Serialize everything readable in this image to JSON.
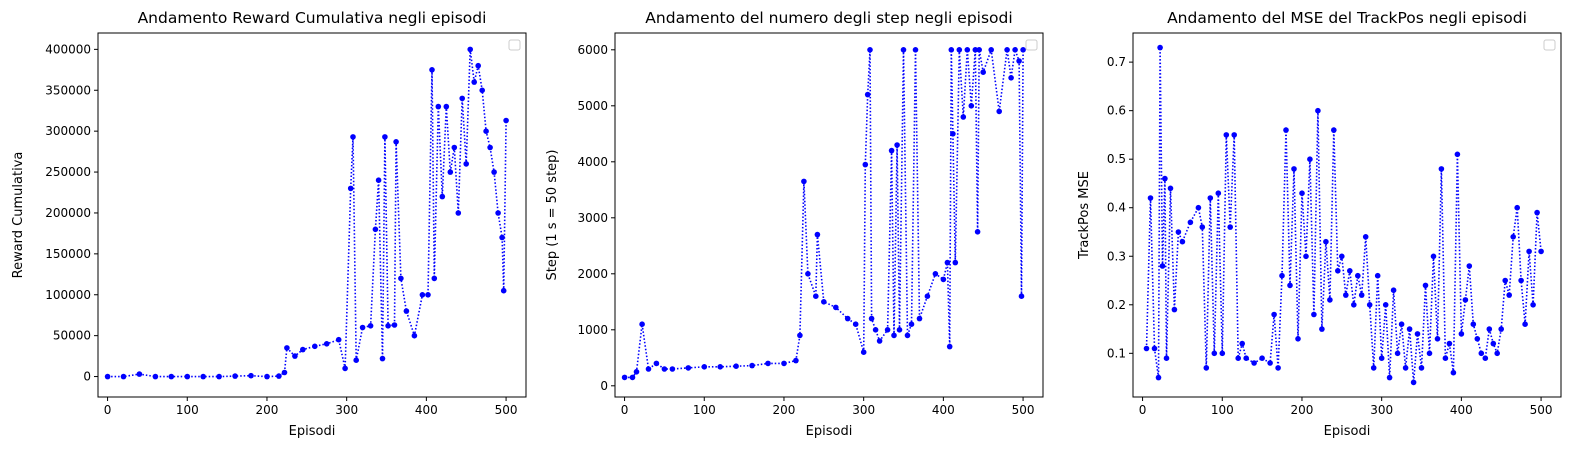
{
  "colors": {
    "series": "#0000ff",
    "axis": "#000000",
    "background": "#ffffff"
  },
  "chart_data": [
    {
      "type": "line",
      "title": "Andamento Reward Cumulativa negli episodi",
      "xlabel": "Episodi",
      "ylabel": "Reward Cumulativa",
      "xlim": [
        -12,
        525
      ],
      "ylim": [
        -25000,
        420000
      ],
      "xticks": [
        0,
        100,
        200,
        300,
        400,
        500
      ],
      "yticks": [
        0,
        50000,
        100000,
        150000,
        200000,
        250000,
        300000,
        350000,
        400000
      ],
      "legend": "top-right (empty)",
      "line_style": "dotted",
      "marker": "circle",
      "x": [
        0,
        20,
        40,
        60,
        80,
        100,
        120,
        140,
        160,
        180,
        200,
        215,
        222,
        225,
        235,
        245,
        260,
        275,
        290,
        298,
        305,
        308,
        312,
        320,
        330,
        336,
        340,
        345,
        348,
        352,
        360,
        362,
        368,
        375,
        385,
        395,
        402,
        407,
        410,
        415,
        420,
        425,
        430,
        435,
        440,
        445,
        450,
        455,
        460,
        465,
        470,
        475,
        480,
        485,
        490,
        495,
        497,
        500
      ],
      "y": [
        0,
        0,
        3000,
        0,
        0,
        0,
        0,
        0,
        500,
        1000,
        0,
        500,
        5000,
        35000,
        25000,
        33000,
        37000,
        40000,
        45000,
        10000,
        230000,
        293000,
        20000,
        60000,
        62000,
        180000,
        240000,
        22000,
        293000,
        62000,
        63000,
        287000,
        120000,
        80000,
        50000,
        100000,
        100000,
        375000,
        120000,
        330000,
        220000,
        330000,
        250000,
        280000,
        200000,
        340000,
        260000,
        400000,
        360000,
        380000,
        350000,
        300000,
        280000,
        250000,
        200000,
        170000,
        105000,
        313000
      ]
    },
    {
      "type": "line",
      "title": "Andamento del numero degli step negli episodi",
      "xlabel": "Episodi",
      "ylabel": "Step (1 s = 50 step)",
      "xlim": [
        -12,
        525
      ],
      "ylim": [
        -200,
        6300
      ],
      "xticks": [
        0,
        100,
        200,
        300,
        400,
        500
      ],
      "yticks": [
        0,
        1000,
        2000,
        3000,
        4000,
        5000,
        6000
      ],
      "legend": "top-right (empty)",
      "line_style": "dotted",
      "marker": "circle",
      "x": [
        0,
        10,
        15,
        22,
        30,
        40,
        50,
        60,
        80,
        100,
        120,
        140,
        160,
        180,
        200,
        215,
        220,
        225,
        230,
        240,
        242,
        250,
        265,
        280,
        290,
        300,
        302,
        305,
        308,
        310,
        315,
        320,
        330,
        335,
        338,
        342,
        345,
        350,
        355,
        360,
        365,
        370,
        380,
        390,
        400,
        405,
        408,
        410,
        412,
        415,
        420,
        425,
        430,
        435,
        440,
        443,
        445,
        450,
        460,
        470,
        480,
        485,
        490,
        495,
        498,
        500
      ],
      "y": [
        150,
        150,
        250,
        1100,
        300,
        400,
        300,
        300,
        320,
        340,
        340,
        350,
        360,
        400,
        400,
        450,
        900,
        3650,
        2000,
        1600,
        2700,
        1500,
        1400,
        1200,
        1100,
        600,
        3950,
        5200,
        6000,
        1200,
        1000,
        800,
        1000,
        4200,
        900,
        4300,
        1000,
        6000,
        900,
        1100,
        6000,
        1200,
        1600,
        2000,
        1900,
        2200,
        700,
        6000,
        4500,
        2200,
        6000,
        4800,
        6000,
        5000,
        6000,
        2750,
        6000,
        5600,
        6000,
        4900,
        6000,
        5500,
        6000,
        5800,
        1600,
        6000
      ]
    },
    {
      "type": "line",
      "title": "Andamento del MSE del TrackPos negli episodi",
      "xlabel": "Episodi",
      "ylabel": "TrackPos MSE",
      "xlim": [
        -12,
        525
      ],
      "ylim": [
        0.01,
        0.76
      ],
      "xticks": [
        0,
        100,
        200,
        300,
        400,
        500
      ],
      "yticks": [
        0.1,
        0.2,
        0.3,
        0.4,
        0.5,
        0.6,
        0.7
      ],
      "legend": "top-right (empty)",
      "line_style": "dotted",
      "marker": "circle",
      "x": [
        5,
        10,
        15,
        20,
        22,
        25,
        28,
        30,
        35,
        40,
        45,
        50,
        60,
        70,
        75,
        80,
        85,
        90,
        95,
        100,
        105,
        110,
        115,
        120,
        125,
        130,
        140,
        150,
        160,
        165,
        170,
        175,
        180,
        185,
        190,
        195,
        200,
        205,
        210,
        215,
        220,
        225,
        230,
        235,
        240,
        245,
        250,
        255,
        260,
        265,
        270,
        275,
        280,
        285,
        290,
        295,
        300,
        305,
        310,
        315,
        320,
        325,
        330,
        335,
        340,
        345,
        350,
        355,
        360,
        365,
        370,
        375,
        380,
        385,
        390,
        395,
        400,
        405,
        410,
        415,
        420,
        425,
        430,
        435,
        440,
        445,
        450,
        455,
        460,
        465,
        470,
        475,
        480,
        485,
        490,
        495,
        500
      ],
      "y": [
        0.11,
        0.42,
        0.11,
        0.05,
        0.73,
        0.28,
        0.46,
        0.09,
        0.44,
        0.19,
        0.35,
        0.33,
        0.37,
        0.4,
        0.36,
        0.07,
        0.42,
        0.1,
        0.43,
        0.1,
        0.55,
        0.36,
        0.55,
        0.09,
        0.12,
        0.09,
        0.08,
        0.09,
        0.08,
        0.18,
        0.07,
        0.26,
        0.56,
        0.24,
        0.48,
        0.13,
        0.43,
        0.3,
        0.5,
        0.18,
        0.6,
        0.15,
        0.33,
        0.21,
        0.56,
        0.27,
        0.3,
        0.22,
        0.27,
        0.2,
        0.26,
        0.22,
        0.34,
        0.2,
        0.07,
        0.26,
        0.09,
        0.2,
        0.05,
        0.23,
        0.1,
        0.16,
        0.07,
        0.15,
        0.04,
        0.14,
        0.07,
        0.24,
        0.1,
        0.3,
        0.13,
        0.48,
        0.09,
        0.12,
        0.06,
        0.51,
        0.14,
        0.21,
        0.28,
        0.16,
        0.13,
        0.1,
        0.09,
        0.15,
        0.12,
        0.1,
        0.15,
        0.25,
        0.22,
        0.34,
        0.4,
        0.25,
        0.16,
        0.31,
        0.2,
        0.39,
        0.31
      ]
    }
  ]
}
